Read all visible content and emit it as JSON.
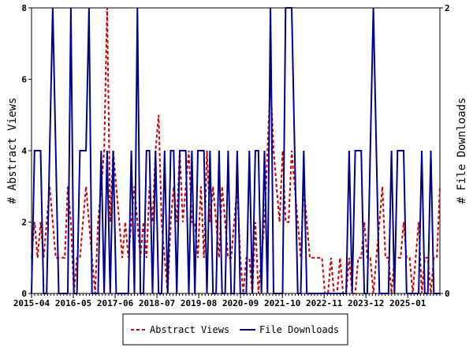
{
  "chart_data": {
    "type": "line",
    "title": "",
    "ylabel_left": "# Abstract Views",
    "ylabel_right": "# File Downloads",
    "ylim_left": [
      0,
      8
    ],
    "ylim_right": [
      0,
      2
    ],
    "left_ticks": [
      "0",
      "2",
      "4",
      "6",
      "8"
    ],
    "right_ticks": [
      "0",
      "2"
    ],
    "x_start": "2015-04",
    "x_end": "2025-11",
    "x_tick_labels": [
      "2015-04",
      "2016-05",
      "2017-06",
      "2018-07",
      "2019-08",
      "2020-09",
      "2021-10",
      "2022-11",
      "2023-12",
      "2025-01"
    ],
    "grid": false,
    "legend_position": "bottom-center",
    "series": [
      {
        "name": "Abstract Views",
        "axis": "left",
        "color": "#cc0000",
        "style": "dashed",
        "values": [
          1,
          2,
          1,
          2,
          1,
          2,
          3,
          2,
          1,
          1,
          1,
          1,
          3,
          2,
          0,
          1,
          1,
          2,
          3,
          2,
          1,
          0,
          2,
          3,
          4,
          8,
          2,
          4,
          3,
          2,
          1,
          2,
          1,
          2,
          3,
          2,
          1,
          2,
          1,
          3,
          2,
          4,
          5,
          2,
          1,
          0,
          2,
          3,
          2,
          4,
          2,
          3,
          4,
          2,
          2,
          1,
          3,
          1,
          4,
          2,
          3,
          2,
          1,
          3,
          2,
          1,
          1,
          2,
          3,
          1,
          0,
          1,
          1,
          0,
          2,
          0,
          1,
          2,
          4,
          6,
          4,
          3,
          2,
          4,
          2,
          2,
          4,
          3,
          2,
          1,
          3,
          2,
          1,
          1,
          1,
          1,
          1,
          0,
          0,
          1,
          0,
          0,
          1,
          0,
          0,
          1,
          0,
          0,
          1,
          1,
          2,
          1,
          1,
          0,
          1,
          2,
          3,
          1,
          1,
          0,
          1,
          1,
          1,
          2,
          1,
          1,
          0,
          1,
          2,
          0,
          1,
          1,
          0,
          1,
          1,
          3
        ]
      },
      {
        "name": "File Downloads",
        "axis": "right",
        "color": "#00008b",
        "style": "solid",
        "values": [
          0,
          1,
          1,
          1,
          0,
          0,
          1,
          2,
          1,
          0,
          0,
          0,
          0,
          2,
          0,
          0,
          1,
          1,
          1,
          2,
          0,
          0,
          0,
          1,
          0,
          1,
          0,
          1,
          0,
          0,
          0,
          0,
          0,
          1,
          0,
          2,
          0,
          0,
          1,
          1,
          0,
          1,
          0,
          0,
          1,
          0,
          1,
          1,
          0,
          1,
          1,
          1,
          0,
          1,
          0,
          1,
          1,
          1,
          0,
          1,
          0,
          0,
          1,
          0,
          0,
          1,
          0,
          0,
          1,
          0,
          0,
          0,
          1,
          0,
          1,
          1,
          0,
          1,
          0,
          2,
          0,
          0,
          0,
          0,
          2,
          2,
          2,
          1,
          0,
          0,
          1,
          0,
          0,
          0,
          0,
          0,
          0,
          0,
          0,
          0,
          0,
          0,
          0,
          0,
          0,
          1,
          0,
          1,
          1,
          1,
          0,
          0,
          1,
          2,
          1,
          0,
          0,
          0,
          0,
          1,
          0,
          1,
          1,
          1,
          0,
          0,
          0,
          0,
          0,
          1,
          0,
          0,
          1,
          0,
          0,
          0
        ]
      }
    ]
  }
}
